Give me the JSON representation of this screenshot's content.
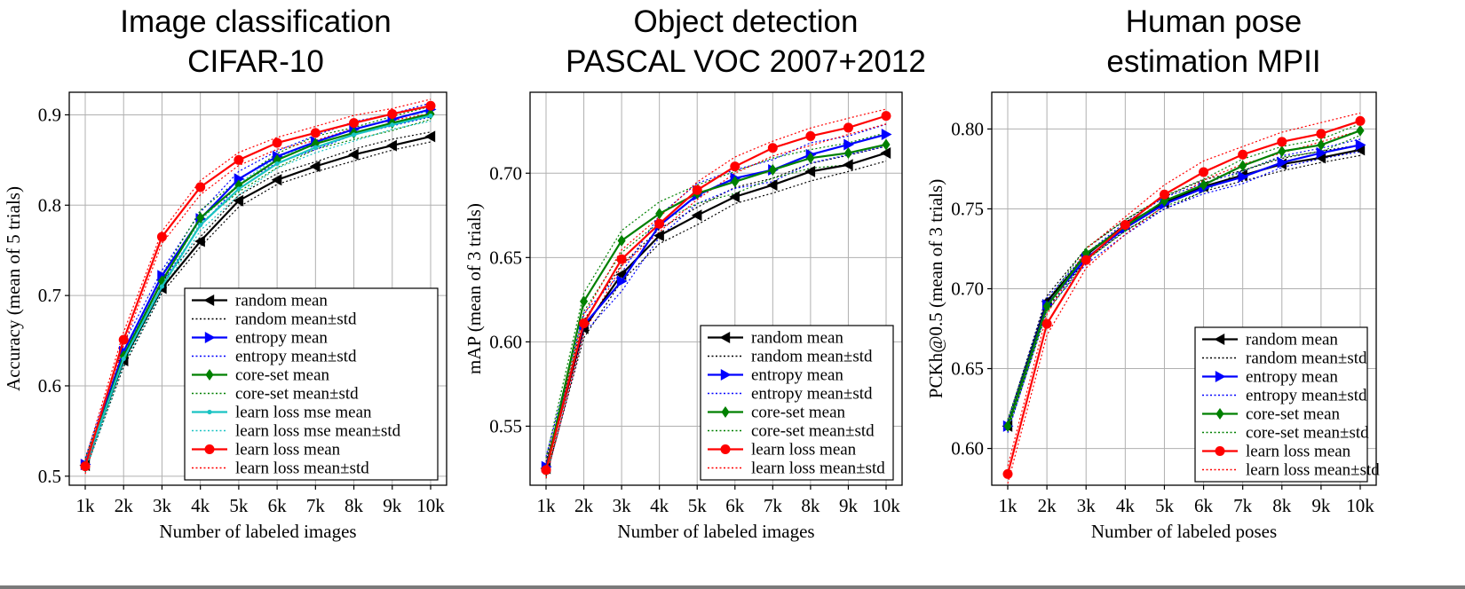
{
  "colors": {
    "random": "#000000",
    "entropy": "#0000ff",
    "coreset": "#008000",
    "mse": "#1ac3c3",
    "learnloss": "#ff0000",
    "grid": "#b0b0b0"
  },
  "chart_data": [
    {
      "type": "line",
      "id": "cifar",
      "title": [
        "Image classification",
        "CIFAR-10"
      ],
      "xlabel": "Number of labeled images",
      "ylabel": "Accuracy (mean of 5 trials)",
      "categories": [
        "1k",
        "2k",
        "3k",
        "4k",
        "5k",
        "6k",
        "7k",
        "8k",
        "9k",
        "10k"
      ],
      "ylim": [
        0.49,
        0.925
      ],
      "yticks": [
        0.5,
        0.6,
        0.7,
        0.8,
        0.9
      ],
      "ytick_labels": [
        "0.5",
        "0.6",
        "0.7",
        "0.8",
        "0.9"
      ],
      "grid": true,
      "legend_position": "lower-right",
      "series": [
        {
          "name": "random mean",
          "std_label": "random mean±std",
          "key": "random",
          "marker": "triangle-left",
          "values": [
            0.512,
            0.628,
            0.708,
            0.76,
            0.805,
            0.828,
            0.843,
            0.856,
            0.866,
            0.876
          ],
          "std": 0.005
        },
        {
          "name": "entropy mean",
          "std_label": "entropy mean±std",
          "key": "entropy",
          "marker": "triangle-right",
          "values": [
            0.513,
            0.638,
            0.722,
            0.785,
            0.829,
            0.854,
            0.87,
            0.884,
            0.895,
            0.906
          ],
          "std": 0.006
        },
        {
          "name": "core-set mean",
          "std_label": "core-set mean±std",
          "key": "coreset",
          "marker": "diamond",
          "values": [
            0.511,
            0.633,
            0.716,
            0.786,
            0.822,
            0.85,
            0.868,
            0.88,
            0.891,
            0.901
          ],
          "std": 0.006
        },
        {
          "name": "learn loss mse mean",
          "std_label": "learn loss mse mean±std",
          "key": "mse",
          "marker": "dot",
          "values": [
            0.511,
            0.63,
            0.71,
            0.778,
            0.818,
            0.846,
            0.864,
            0.878,
            0.889,
            0.899
          ],
          "std": 0.005
        },
        {
          "name": "learn loss mean",
          "std_label": "learn loss mean±std",
          "key": "learnloss",
          "marker": "circle",
          "values": [
            0.511,
            0.651,
            0.765,
            0.82,
            0.85,
            0.869,
            0.88,
            0.891,
            0.901,
            0.91
          ],
          "std": 0.006
        }
      ]
    },
    {
      "type": "line",
      "id": "voc",
      "title": [
        "Object detection",
        "PASCAL VOC 2007+2012"
      ],
      "xlabel": "Number of labeled images",
      "ylabel": "mAP (mean of 3 trials)",
      "categories": [
        "1k",
        "2k",
        "3k",
        "4k",
        "5k",
        "6k",
        "7k",
        "8k",
        "9k",
        "10k"
      ],
      "ylim": [
        0.515,
        0.748
      ],
      "yticks": [
        0.55,
        0.6,
        0.65,
        0.7
      ],
      "ytick_labels": [
        "0.55",
        "0.60",
        "0.65",
        "0.70"
      ],
      "grid": true,
      "legend_position": "lower-right",
      "series": [
        {
          "name": "random mean",
          "std_label": "random mean±std",
          "key": "random",
          "marker": "triangle-left",
          "values": [
            0.525,
            0.608,
            0.64,
            0.663,
            0.675,
            0.686,
            0.693,
            0.701,
            0.705,
            0.712
          ],
          "std": 0.004
        },
        {
          "name": "entropy mean",
          "std_label": "entropy mean±std",
          "key": "entropy",
          "marker": "triangle-right",
          "values": [
            0.526,
            0.61,
            0.636,
            0.669,
            0.687,
            0.697,
            0.702,
            0.711,
            0.717,
            0.723
          ],
          "std": 0.005
        },
        {
          "name": "core-set mean",
          "std_label": "core-set mean±std",
          "key": "coreset",
          "marker": "diamond",
          "values": [
            0.524,
            0.624,
            0.66,
            0.676,
            0.688,
            0.695,
            0.702,
            0.709,
            0.712,
            0.717
          ],
          "std": 0.005
        },
        {
          "name": "learn loss mean",
          "std_label": "learn loss mean±std",
          "key": "learnloss",
          "marker": "circle",
          "values": [
            0.524,
            0.611,
            0.649,
            0.67,
            0.69,
            0.704,
            0.715,
            0.722,
            0.727,
            0.734
          ],
          "std": 0.004
        }
      ]
    },
    {
      "type": "line",
      "id": "mpii",
      "title": [
        "Human pose",
        "estimation MPII"
      ],
      "xlabel": "Number of labeled poses",
      "ylabel": "PCKh@0.5 (mean of 3 trials)",
      "categories": [
        "1k",
        "2k",
        "3k",
        "4k",
        "5k",
        "6k",
        "7k",
        "8k",
        "9k",
        "10k"
      ],
      "ylim": [
        0.577,
        0.823
      ],
      "yticks": [
        0.6,
        0.65,
        0.7,
        0.75,
        0.8
      ],
      "ytick_labels": [
        "0.60",
        "0.65",
        "0.70",
        "0.75",
        "0.80"
      ],
      "grid": true,
      "legend_position": "lower-right",
      "series": [
        {
          "name": "random mean",
          "std_label": "random mean±std",
          "key": "random",
          "marker": "triangle-left",
          "values": [
            0.614,
            0.692,
            0.721,
            0.74,
            0.754,
            0.764,
            0.771,
            0.778,
            0.782,
            0.787
          ],
          "std": 0.003
        },
        {
          "name": "entropy mean",
          "std_label": "entropy mean±std",
          "key": "entropy",
          "marker": "triangle-right",
          "values": [
            0.614,
            0.69,
            0.719,
            0.738,
            0.753,
            0.763,
            0.77,
            0.779,
            0.785,
            0.79
          ],
          "std": 0.003
        },
        {
          "name": "core-set mean",
          "std_label": "core-set mean±std",
          "key": "coreset",
          "marker": "diamond",
          "values": [
            0.614,
            0.689,
            0.722,
            0.739,
            0.755,
            0.765,
            0.777,
            0.786,
            0.79,
            0.799
          ],
          "std": 0.003
        },
        {
          "name": "learn loss mean",
          "std_label": "learn loss mean±std",
          "key": "learnloss",
          "marker": "circle",
          "values": [
            0.584,
            0.678,
            0.718,
            0.74,
            0.759,
            0.773,
            0.784,
            0.792,
            0.797,
            0.805
          ],
          "std": 0.005
        }
      ]
    }
  ]
}
